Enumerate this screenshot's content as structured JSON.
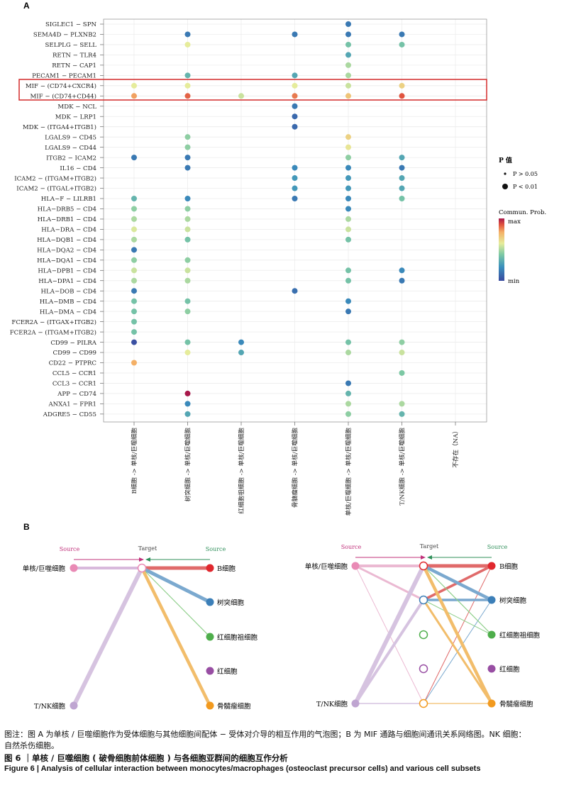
{
  "panel_a_label": "A",
  "panel_b_label": "B",
  "chart_data": {
    "type": "bubble",
    "rows": [
      "SIGLEC1 − SPN",
      "SEMA4D − PLXNB2",
      "SELPLG − SELL",
      "RETN − TLR4",
      "RETN − CAP1",
      "PECAM1 − PECAM1",
      "MIF − (CD74+CXCR4)",
      "MIF − (CD74+CD44)",
      "MDK − NCL",
      "MDK − LRP1",
      "MDK − (ITGA4+ITGB1)",
      "LGALS9 − CD45",
      "LGALS9 − CD44",
      "ITGB2 − ICAM2",
      "IL16 − CD4",
      "ICAM2 − (ITGAM+ITGB2)",
      "ICAM2 − (ITGAL+ITGB2)",
      "HLA−F − LILRB1",
      "HLA−DRB5 − CD4",
      "HLA−DRB1 − CD4",
      "HLA−DRA − CD4",
      "HLA−DQB1 − CD4",
      "HLA−DQA2 − CD4",
      "HLA−DQA1 − CD4",
      "HLA−DPB1 − CD4",
      "HLA−DPA1 − CD4",
      "HLA−DOB − CD4",
      "HLA−DMB − CD4",
      "HLA−DMA − CD4",
      "FCER2A − (ITGAX+ITGB2)",
      "FCER2A − (ITGAM+ITGB2)",
      "CD99 − PILRA",
      "CD99 − CD99",
      "CD22 − PTPRC",
      "CCL5 − CCR1",
      "CCL3 − CCR1",
      "APP − CD74",
      "ANXA1 − FPR1",
      "ADGRE5 − CD55"
    ],
    "columns": [
      "B细胞 -> 单核/巨噬细胞",
      "树突细胞 -> 单核/巨噬细胞",
      "红细胞祖细胞 -> 单核/巨噬细胞",
      "骨髓瘤细胞 -> 单核/巨噬细胞",
      "单核/巨噬细胞 -> 单核/巨噬细胞",
      "T/NK细胞 -> 单核/巨噬细胞",
      "不存在（NA）"
    ],
    "value_scale": "0 = min, 1 = max (Commun. Prob.)",
    "points": [
      {
        "r": 0,
        "c": 4,
        "v": 0.15
      },
      {
        "r": 1,
        "c": 1,
        "v": 0.15
      },
      {
        "r": 1,
        "c": 3,
        "v": 0.15
      },
      {
        "r": 1,
        "c": 4,
        "v": 0.15
      },
      {
        "r": 1,
        "c": 5,
        "v": 0.15
      },
      {
        "r": 2,
        "c": 1,
        "v": 0.6
      },
      {
        "r": 2,
        "c": 4,
        "v": 0.4
      },
      {
        "r": 2,
        "c": 5,
        "v": 0.4
      },
      {
        "r": 3,
        "c": 4,
        "v": 0.3
      },
      {
        "r": 4,
        "c": 4,
        "v": 0.5
      },
      {
        "r": 5,
        "c": 1,
        "v": 0.35
      },
      {
        "r": 5,
        "c": 3,
        "v": 0.3
      },
      {
        "r": 5,
        "c": 4,
        "v": 0.5
      },
      {
        "r": 6,
        "c": 0,
        "v": 0.6
      },
      {
        "r": 6,
        "c": 1,
        "v": 0.6
      },
      {
        "r": 6,
        "c": 3,
        "v": 0.6
      },
      {
        "r": 6,
        "c": 4,
        "v": 0.55
      },
      {
        "r": 6,
        "c": 5,
        "v": 0.68
      },
      {
        "r": 7,
        "c": 0,
        "v": 0.8
      },
      {
        "r": 7,
        "c": 1,
        "v": 0.88
      },
      {
        "r": 7,
        "c": 2,
        "v": 0.55
      },
      {
        "r": 7,
        "c": 3,
        "v": 0.85
      },
      {
        "r": 7,
        "c": 4,
        "v": 0.72
      },
      {
        "r": 7,
        "c": 5,
        "v": 0.9
      },
      {
        "r": 8,
        "c": 3,
        "v": 0.15
      },
      {
        "r": 9,
        "c": 3,
        "v": 0.1
      },
      {
        "r": 10,
        "c": 3,
        "v": 0.1
      },
      {
        "r": 11,
        "c": 1,
        "v": 0.45
      },
      {
        "r": 11,
        "c": 4,
        "v": 0.68
      },
      {
        "r": 12,
        "c": 1,
        "v": 0.45
      },
      {
        "r": 12,
        "c": 4,
        "v": 0.62
      },
      {
        "r": 13,
        "c": 0,
        "v": 0.15
      },
      {
        "r": 13,
        "c": 1,
        "v": 0.15
      },
      {
        "r": 13,
        "c": 4,
        "v": 0.45
      },
      {
        "r": 13,
        "c": 5,
        "v": 0.3
      },
      {
        "r": 14,
        "c": 1,
        "v": 0.15
      },
      {
        "r": 14,
        "c": 3,
        "v": 0.2
      },
      {
        "r": 14,
        "c": 4,
        "v": 0.2
      },
      {
        "r": 14,
        "c": 5,
        "v": 0.15
      },
      {
        "r": 15,
        "c": 3,
        "v": 0.25
      },
      {
        "r": 15,
        "c": 4,
        "v": 0.25
      },
      {
        "r": 15,
        "c": 5,
        "v": 0.3
      },
      {
        "r": 16,
        "c": 3,
        "v": 0.25
      },
      {
        "r": 16,
        "c": 4,
        "v": 0.25
      },
      {
        "r": 16,
        "c": 5,
        "v": 0.3
      },
      {
        "r": 17,
        "c": 0,
        "v": 0.35
      },
      {
        "r": 17,
        "c": 1,
        "v": 0.2
      },
      {
        "r": 17,
        "c": 3,
        "v": 0.15
      },
      {
        "r": 17,
        "c": 4,
        "v": 0.2
      },
      {
        "r": 17,
        "c": 5,
        "v": 0.4
      },
      {
        "r": 18,
        "c": 0,
        "v": 0.45
      },
      {
        "r": 18,
        "c": 1,
        "v": 0.45
      },
      {
        "r": 18,
        "c": 4,
        "v": 0.2
      },
      {
        "r": 19,
        "c": 0,
        "v": 0.5
      },
      {
        "r": 19,
        "c": 1,
        "v": 0.5
      },
      {
        "r": 19,
        "c": 4,
        "v": 0.5
      },
      {
        "r": 20,
        "c": 0,
        "v": 0.58
      },
      {
        "r": 20,
        "c": 1,
        "v": 0.55
      },
      {
        "r": 20,
        "c": 4,
        "v": 0.55
      },
      {
        "r": 21,
        "c": 0,
        "v": 0.5
      },
      {
        "r": 21,
        "c": 1,
        "v": 0.4
      },
      {
        "r": 21,
        "c": 4,
        "v": 0.4
      },
      {
        "r": 22,
        "c": 0,
        "v": 0.15
      },
      {
        "r": 23,
        "c": 0,
        "v": 0.45
      },
      {
        "r": 23,
        "c": 1,
        "v": 0.45
      },
      {
        "r": 24,
        "c": 0,
        "v": 0.55
      },
      {
        "r": 24,
        "c": 1,
        "v": 0.55
      },
      {
        "r": 24,
        "c": 4,
        "v": 0.4
      },
      {
        "r": 24,
        "c": 5,
        "v": 0.2
      },
      {
        "r": 25,
        "c": 0,
        "v": 0.5
      },
      {
        "r": 25,
        "c": 1,
        "v": 0.5
      },
      {
        "r": 25,
        "c": 4,
        "v": 0.4
      },
      {
        "r": 25,
        "c": 5,
        "v": 0.15
      },
      {
        "r": 26,
        "c": 0,
        "v": 0.15
      },
      {
        "r": 26,
        "c": 3,
        "v": 0.12
      },
      {
        "r": 27,
        "c": 0,
        "v": 0.4
      },
      {
        "r": 27,
        "c": 1,
        "v": 0.4
      },
      {
        "r": 27,
        "c": 4,
        "v": 0.2
      },
      {
        "r": 28,
        "c": 0,
        "v": 0.4
      },
      {
        "r": 28,
        "c": 1,
        "v": 0.45
      },
      {
        "r": 28,
        "c": 4,
        "v": 0.15
      },
      {
        "r": 29,
        "c": 0,
        "v": 0.4
      },
      {
        "r": 30,
        "c": 0,
        "v": 0.4
      },
      {
        "r": 31,
        "c": 0,
        "v": 0.02
      },
      {
        "r": 31,
        "c": 1,
        "v": 0.4
      },
      {
        "r": 31,
        "c": 2,
        "v": 0.2
      },
      {
        "r": 31,
        "c": 4,
        "v": 0.4
      },
      {
        "r": 31,
        "c": 5,
        "v": 0.45
      },
      {
        "r": 32,
        "c": 1,
        "v": 0.6
      },
      {
        "r": 32,
        "c": 2,
        "v": 0.3
      },
      {
        "r": 32,
        "c": 4,
        "v": 0.5
      },
      {
        "r": 32,
        "c": 5,
        "v": 0.55
      },
      {
        "r": 33,
        "c": 0,
        "v": 0.78
      },
      {
        "r": 34,
        "c": 5,
        "v": 0.42
      },
      {
        "r": 35,
        "c": 4,
        "v": 0.15
      },
      {
        "r": 36,
        "c": 1,
        "v": 1.0
      },
      {
        "r": 36,
        "c": 4,
        "v": 0.35
      },
      {
        "r": 37,
        "c": 1,
        "v": 0.2
      },
      {
        "r": 37,
        "c": 4,
        "v": 0.5
      },
      {
        "r": 37,
        "c": 5,
        "v": 0.5
      },
      {
        "r": 38,
        "c": 1,
        "v": 0.3
      },
      {
        "r": 38,
        "c": 4,
        "v": 0.45
      },
      {
        "r": 38,
        "c": 5,
        "v": 0.35
      }
    ],
    "highlighted_rows": [
      "MIF − (CD74+CXCR4)",
      "MIF − (CD74+CD44)"
    ],
    "legend": {
      "pvalue_title": "P 值",
      "pvalue_items": [
        "P > 0.05",
        "P < 0.01"
      ],
      "color_title": "Commun. Prob.",
      "color_max": "max",
      "color_min": "min"
    }
  },
  "network": {
    "header": {
      "source": "Source",
      "target": "Target"
    },
    "cells": [
      "单核/巨噬细胞",
      "T/NK细胞",
      "B细胞",
      "树突细胞",
      "红细胞祖细胞",
      "红细胞",
      "骨髓瘤细胞"
    ],
    "colors": {
      "mono": "#e98ab5",
      "tnk": "#bfa5d1",
      "b": "#e0282e",
      "dc": "#3c7fb8",
      "erp": "#4eae4b",
      "ery": "#984ea3",
      "mye": "#f29a1f",
      "source_label": "#c0307a",
      "target_label": "#444444",
      "right_source_label": "#2f8f5a"
    },
    "left_edges": [
      {
        "from": "b",
        "weight": 5
      },
      {
        "from": "dc",
        "weight": 5
      },
      {
        "from": "erp",
        "weight": 1
      },
      {
        "from": "mye",
        "weight": 4
      },
      {
        "from": "mono",
        "weight": 3
      },
      {
        "from": "tnk",
        "weight": 4
      }
    ]
  },
  "captions": {
    "note_line1": "图注：图 A 为单核 / 巨噬细胞作为受体细胞与其他细胞间配体 − 受体对介导的相互作用的气泡图；B 为 MIF 通路与细胞间通讯关系网络图。NK 细胞：",
    "note_line2": "自然杀伤细胞。",
    "figure_cn": "图 6 ｜单核 / 巨噬细胞 ( 破骨细胞前体细胞 ) 与各细胞亚群间的细胞互作分析",
    "figure_en": "Figure 6  |  Analysis of cellular interaction between monocytes/macrophages (osteoclast precursor cells) and various cell subsets"
  }
}
